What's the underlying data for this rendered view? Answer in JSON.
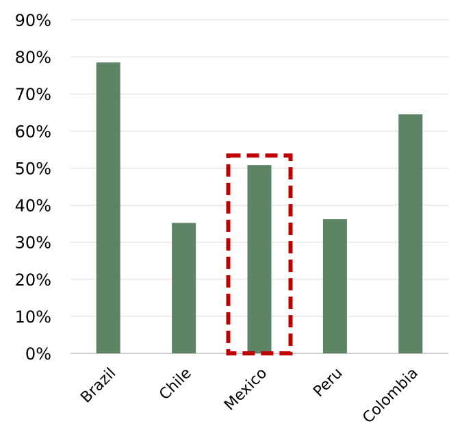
{
  "chart_data": {
    "type": "bar",
    "categories": [
      "Brazil",
      "Chile",
      "Mexico",
      "Peru",
      "Colombia"
    ],
    "values": [
      78.5,
      35.2,
      50.8,
      36.2,
      64.5
    ],
    "ylim": [
      0,
      90
    ],
    "y_ticks": [
      "0%",
      "10%",
      "20%",
      "30%",
      "40%",
      "50%",
      "60%",
      "70%",
      "80%",
      "90%"
    ],
    "grid": true,
    "bar_color": "#5d8465",
    "highlight": {
      "category": "Mexico",
      "style": "dashed-box",
      "color": "#c00000"
    }
  }
}
